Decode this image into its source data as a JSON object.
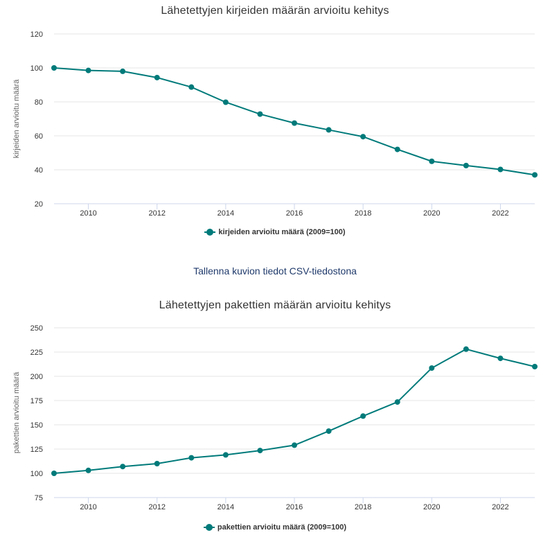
{
  "chart_data": [
    {
      "type": "line",
      "title": "Lähetettyjen kirjeiden määrän arvioitu kehitys",
      "xlabel": "",
      "ylabel": "kirjeiden arvioitu määrä",
      "xlim": [
        2009,
        2023
      ],
      "ylim": [
        20,
        120
      ],
      "xticks": [
        2010,
        2012,
        2014,
        2016,
        2018,
        2020,
        2022
      ],
      "yticks": [
        20,
        40,
        60,
        80,
        100,
        120
      ],
      "grid": true,
      "legend_position": "bottom",
      "series": [
        {
          "name": "kirjeiden arvioitu määrä (2009=100)",
          "color": "#007a7a",
          "x": [
            2009,
            2010,
            2011,
            2012,
            2013,
            2014,
            2015,
            2016,
            2017,
            2018,
            2019,
            2020,
            2021,
            2022,
            2023
          ],
          "values": [
            100,
            98.5,
            98,
            94.3,
            88.7,
            79.8,
            72.8,
            67.5,
            63.5,
            59.5,
            52,
            45,
            42.5,
            40.2,
            37
          ]
        }
      ]
    },
    {
      "type": "line",
      "title": "Lähetettyjen pakettien määrän arvioitu kehitys",
      "xlabel": "",
      "ylabel": "pakettien arvioitu määrä",
      "xlim": [
        2009,
        2023
      ],
      "ylim": [
        75,
        250
      ],
      "xticks": [
        2010,
        2012,
        2014,
        2016,
        2018,
        2020,
        2022
      ],
      "yticks": [
        75,
        100,
        125,
        150,
        175,
        200,
        225,
        250
      ],
      "grid": true,
      "legend_position": "bottom",
      "series": [
        {
          "name": "pakettien arvioitu määrä (2009=100)",
          "color": "#007a7a",
          "x": [
            2009,
            2010,
            2011,
            2012,
            2013,
            2014,
            2015,
            2016,
            2017,
            2018,
            2019,
            2020,
            2021,
            2022,
            2023
          ],
          "values": [
            100,
            103,
            107,
            110,
            116,
            119,
            123.5,
            129,
            143.5,
            159,
            173.5,
            208.5,
            228,
            218.5,
            210
          ]
        }
      ]
    }
  ],
  "csv_link": "Tallenna kuvion tiedot CSV-tiedostona"
}
